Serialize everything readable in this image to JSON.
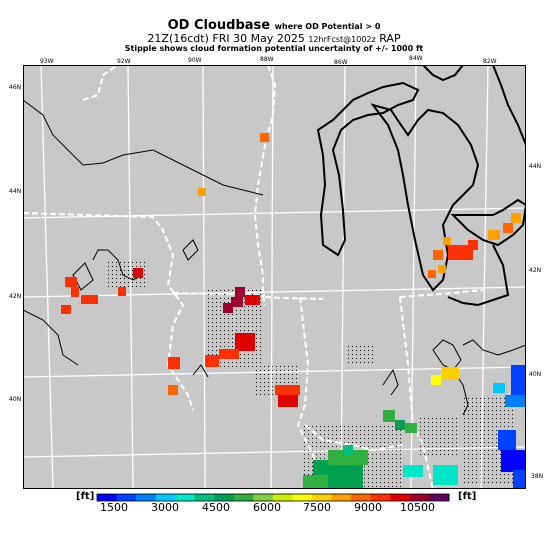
{
  "header": {
    "title": "OD Cloudbase",
    "title_note": "where OD Potential > 0",
    "run_time": "21Z(16cdt)",
    "date": "FRI 30 May 2025",
    "run_info": "12hrFcst@1002z",
    "model": "RAP",
    "subtitle": "Stipple shows cloud formation potential uncertainty of +/- 1000 ft"
  },
  "map": {
    "longitude_labels": [
      "93W",
      "92W",
      "90W",
      "88W",
      "86W",
      "84W",
      "82W"
    ],
    "latitude_labels_left": [
      "46N",
      "44N",
      "42N",
      "40N"
    ],
    "latitude_labels_right": [
      "44N",
      "42N",
      "40N",
      "38N"
    ],
    "background_color": "#c8c8c8"
  },
  "colorbar": {
    "unit_left": "[ft]",
    "unit_right": "[ft]",
    "tick_labels": [
      "1500",
      "3000",
      "4500",
      "6000",
      "7500",
      "9000",
      "10500"
    ],
    "colors": [
      "#0000ff",
      "#0040ff",
      "#0080ff",
      "#00c8ff",
      "#00e6c8",
      "#00c080",
      "#00a050",
      "#30b040",
      "#80d040",
      "#c8f000",
      "#ffff00",
      "#ffd000",
      "#ffa000",
      "#ff6400",
      "#ff3000",
      "#e00000",
      "#a00030",
      "#600060"
    ]
  }
}
